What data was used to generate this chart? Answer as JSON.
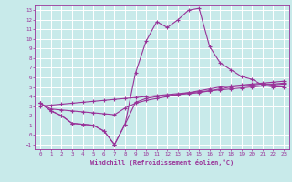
{
  "xlabel": "Windchill (Refroidissement éolien,°C)",
  "bg_color": "#c8eaea",
  "grid_color": "#b8d8d8",
  "line_color": "#993399",
  "xlim": [
    -0.5,
    23.5
  ],
  "ylim": [
    -1.5,
    13.5
  ],
  "xticks": [
    0,
    1,
    2,
    3,
    4,
    5,
    6,
    7,
    8,
    9,
    10,
    11,
    12,
    13,
    14,
    15,
    16,
    17,
    18,
    19,
    20,
    21,
    22,
    23
  ],
  "yticks": [
    -1,
    0,
    1,
    2,
    3,
    4,
    5,
    6,
    7,
    8,
    9,
    10,
    11,
    12,
    13
  ],
  "curve1_x": [
    0,
    1,
    2,
    3,
    4,
    5,
    6,
    7,
    8,
    9,
    10,
    11,
    12,
    13,
    14,
    15,
    16,
    17,
    18,
    19,
    20,
    21,
    22,
    23
  ],
  "curve1_y": [
    3.3,
    2.5,
    2.0,
    1.2,
    1.1,
    1.0,
    0.4,
    -1.0,
    1.1,
    6.5,
    9.8,
    11.8,
    11.2,
    12.0,
    13.0,
    13.2,
    9.2,
    7.5,
    6.8,
    6.1,
    5.8,
    5.2,
    5.0,
    5.0
  ],
  "curve2_x": [
    0,
    1,
    2,
    3,
    4,
    5,
    6,
    7,
    8,
    9,
    10,
    11,
    12,
    13,
    14,
    15,
    16,
    17,
    18,
    19,
    20,
    21,
    22,
    23
  ],
  "curve2_y": [
    3.3,
    2.5,
    2.0,
    1.2,
    1.1,
    1.0,
    0.4,
    -1.0,
    1.1,
    3.4,
    3.8,
    4.0,
    4.1,
    4.2,
    4.3,
    4.4,
    4.6,
    4.8,
    5.0,
    5.1,
    5.2,
    5.3,
    5.3,
    5.4
  ],
  "curve3_x": [
    0,
    1,
    2,
    3,
    4,
    5,
    6,
    7,
    8,
    9,
    10,
    11,
    12,
    13,
    14,
    15,
    16,
    17,
    18,
    19,
    20,
    21,
    22,
    23
  ],
  "curve3_y": [
    3.3,
    2.7,
    2.6,
    2.5,
    2.4,
    2.3,
    2.2,
    2.1,
    2.8,
    3.3,
    3.6,
    3.8,
    4.0,
    4.2,
    4.4,
    4.6,
    4.8,
    5.0,
    5.1,
    5.2,
    5.3,
    5.4,
    5.5,
    5.6
  ],
  "curve4_x": [
    0,
    1,
    2,
    3,
    4,
    5,
    6,
    7,
    8,
    9,
    10,
    11,
    12,
    13,
    14,
    15,
    16,
    17,
    18,
    19,
    20,
    21,
    22,
    23
  ],
  "curve4_y": [
    3.0,
    3.1,
    3.2,
    3.3,
    3.4,
    3.5,
    3.6,
    3.7,
    3.8,
    3.9,
    4.0,
    4.1,
    4.2,
    4.3,
    4.4,
    4.5,
    4.6,
    4.7,
    4.8,
    4.9,
    5.0,
    5.1,
    5.2,
    5.3
  ]
}
